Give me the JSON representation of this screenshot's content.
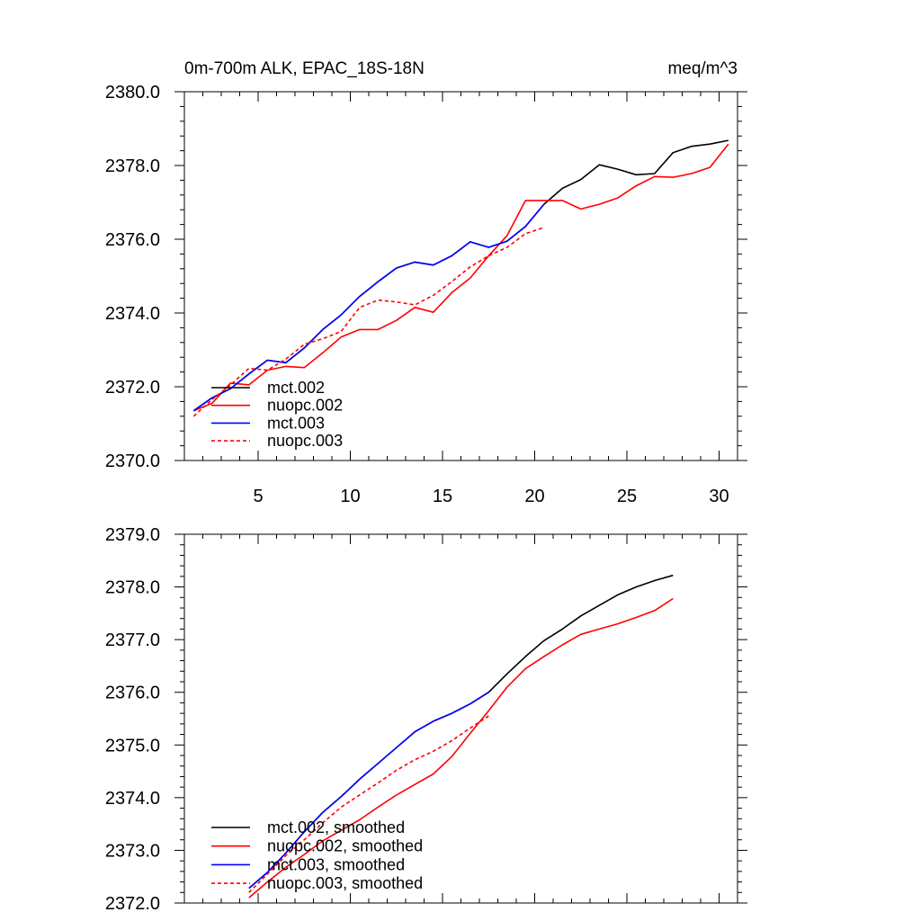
{
  "chart_data": [
    {
      "type": "line",
      "title": "0m-700m ALK, EPAC_18S-18N",
      "units": "meq/m^3",
      "xlim": [
        1,
        31
      ],
      "ylim": [
        2370,
        2380
      ],
      "xticks": [
        5,
        10,
        15,
        20,
        25,
        30
      ],
      "yticks": [
        2370,
        2372,
        2374,
        2376,
        2378,
        2380
      ],
      "xtick_labels": [
        "5",
        "10",
        "15",
        "20",
        "25",
        "30"
      ],
      "ytick_labels": [
        "2370.0",
        "2372.0",
        "2374.0",
        "2376.0",
        "2378.0",
        "2380.0"
      ],
      "grid": false,
      "legend_position": "lower-left",
      "series": [
        {
          "name": "mct.002",
          "color": "#000000",
          "dash": "solid",
          "x": [
            1.5,
            2.5,
            3.5,
            4.5,
            5.5,
            6.5,
            7.5,
            8.5,
            9.5,
            10.5,
            11.5,
            12.5,
            13.5,
            14.5,
            15.5,
            16.5,
            17.5,
            18.5,
            19.5,
            20.5,
            21.5,
            22.5,
            23.5,
            24.5,
            25.5,
            26.5,
            27.5,
            28.5,
            29.5,
            30.5
          ],
          "values": [
            2371.35,
            2371.7,
            2371.95,
            2372.35,
            2372.72,
            2372.65,
            2373.05,
            2373.55,
            2373.95,
            2374.45,
            2374.85,
            2375.22,
            2375.38,
            2375.3,
            2375.55,
            2375.93,
            2375.78,
            2375.95,
            2376.35,
            2376.95,
            2377.38,
            2377.62,
            2378.02,
            2377.9,
            2377.75,
            2377.78,
            2378.35,
            2378.52,
            2378.58,
            2378.68
          ]
        },
        {
          "name": "nuopc.002",
          "color": "#ff0000",
          "dash": "solid",
          "x": [
            1.5,
            2.5,
            3.5,
            4.5,
            5.5,
            6.5,
            7.5,
            8.5,
            9.5,
            10.5,
            11.5,
            12.5,
            13.5,
            14.5,
            15.5,
            16.5,
            17.5,
            18.5,
            19.5,
            20.5,
            21.5,
            22.5,
            23.5,
            24.5,
            25.5,
            26.5,
            27.5,
            28.5,
            29.5,
            30.5
          ],
          "values": [
            2371.35,
            2371.55,
            2372.1,
            2372.05,
            2372.45,
            2372.55,
            2372.52,
            2372.92,
            2373.35,
            2373.55,
            2373.55,
            2373.8,
            2374.15,
            2374.02,
            2374.55,
            2374.95,
            2375.55,
            2376.1,
            2377.05,
            2377.05,
            2377.05,
            2376.82,
            2376.95,
            2377.12,
            2377.45,
            2377.7,
            2377.68,
            2377.78,
            2377.95,
            2378.58
          ]
        },
        {
          "name": "mct.003",
          "color": "#0000ff",
          "dash": "solid",
          "x": [
            1.5,
            2.5,
            3.5,
            4.5,
            5.5,
            6.5,
            7.5,
            8.5,
            9.5,
            10.5,
            11.5,
            12.5,
            13.5,
            14.5,
            15.5,
            16.5,
            17.5,
            18.5,
            19.5,
            20.5
          ],
          "values": [
            2371.35,
            2371.7,
            2371.95,
            2372.35,
            2372.72,
            2372.65,
            2373.05,
            2373.55,
            2373.95,
            2374.45,
            2374.85,
            2375.22,
            2375.38,
            2375.3,
            2375.55,
            2375.93,
            2375.78,
            2375.95,
            2376.35,
            2376.95
          ]
        },
        {
          "name": "nuopc.003",
          "color": "#ff0000",
          "dash": "dashed",
          "x": [
            1.5,
            2.5,
            3.5,
            4.5,
            5.5,
            6.5,
            7.5,
            8.5,
            9.5,
            10.5,
            11.5,
            12.5,
            13.5,
            14.5,
            15.5,
            16.5,
            17.5,
            18.5,
            19.5,
            20.5
          ],
          "values": [
            2371.2,
            2371.65,
            2372.05,
            2372.5,
            2372.45,
            2372.75,
            2373.15,
            2373.3,
            2373.5,
            2374.15,
            2374.35,
            2374.3,
            2374.22,
            2374.48,
            2374.85,
            2375.25,
            2375.55,
            2375.78,
            2376.15,
            2376.32
          ]
        }
      ]
    },
    {
      "type": "line",
      "title": "",
      "xlim": [
        1,
        31
      ],
      "ylim": [
        2372,
        2379
      ],
      "xticks": [
        5,
        10,
        15,
        20,
        25,
        30
      ],
      "yticks": [
        2372,
        2373,
        2374,
        2375,
        2376,
        2377,
        2378,
        2379
      ],
      "xtick_labels": [],
      "ytick_labels": [
        "2372.0",
        "2373.0",
        "2374.0",
        "2375.0",
        "2376.0",
        "2377.0",
        "2378.0",
        "2379.0"
      ],
      "grid": false,
      "legend_position": "lower-left",
      "series": [
        {
          "name": "mct.002, smoothed",
          "color": "#000000",
          "dash": "solid",
          "x": [
            4.5,
            5.5,
            6.5,
            7.5,
            8.5,
            9.5,
            10.5,
            11.5,
            12.5,
            13.5,
            14.5,
            15.5,
            16.5,
            17.5,
            18.5,
            19.5,
            20.5,
            21.5,
            22.5,
            23.5,
            24.5,
            25.5,
            26.5,
            27.5
          ],
          "values": [
            2372.28,
            2372.58,
            2372.95,
            2373.35,
            2373.72,
            2374.02,
            2374.35,
            2374.65,
            2374.95,
            2375.25,
            2375.45,
            2375.6,
            2375.78,
            2376.0,
            2376.35,
            2376.68,
            2376.98,
            2377.2,
            2377.45,
            2377.65,
            2377.85,
            2378.0,
            2378.12,
            2378.22
          ]
        },
        {
          "name": "nuopc.002, smoothed",
          "color": "#ff0000",
          "dash": "solid",
          "x": [
            4.5,
            5.5,
            6.5,
            7.5,
            8.5,
            9.5,
            10.5,
            11.5,
            12.5,
            13.5,
            14.5,
            15.5,
            16.5,
            17.5,
            18.5,
            19.5,
            20.5,
            21.5,
            22.5,
            23.5,
            24.5,
            25.5,
            26.5,
            27.5
          ],
          "values": [
            2372.1,
            2372.4,
            2372.68,
            2372.92,
            2373.18,
            2373.38,
            2373.58,
            2373.82,
            2374.05,
            2374.25,
            2374.45,
            2374.78,
            2375.22,
            2375.65,
            2376.1,
            2376.45,
            2376.68,
            2376.9,
            2377.1,
            2377.2,
            2377.3,
            2377.42,
            2377.55,
            2377.78
          ]
        },
        {
          "name": "mct.003, smoothed",
          "color": "#0000ff",
          "dash": "solid",
          "x": [
            4.5,
            5.5,
            6.5,
            7.5,
            8.5,
            9.5,
            10.5,
            11.5,
            12.5,
            13.5,
            14.5,
            15.5,
            16.5,
            17.5
          ],
          "values": [
            2372.28,
            2372.58,
            2372.95,
            2373.35,
            2373.72,
            2374.02,
            2374.35,
            2374.65,
            2374.95,
            2375.25,
            2375.45,
            2375.6,
            2375.78,
            2376.0
          ]
        },
        {
          "name": "nuopc.003, smoothed",
          "color": "#ff0000",
          "dash": "dashed",
          "x": [
            4.5,
            5.5,
            6.5,
            7.5,
            8.5,
            9.5,
            10.5,
            11.5,
            12.5,
            13.5,
            14.5,
            15.5,
            16.5,
            17.5
          ],
          "values": [
            2372.2,
            2372.55,
            2372.9,
            2373.2,
            2373.52,
            2373.82,
            2374.05,
            2374.28,
            2374.52,
            2374.72,
            2374.88,
            2375.08,
            2375.32,
            2375.55
          ]
        }
      ]
    }
  ]
}
